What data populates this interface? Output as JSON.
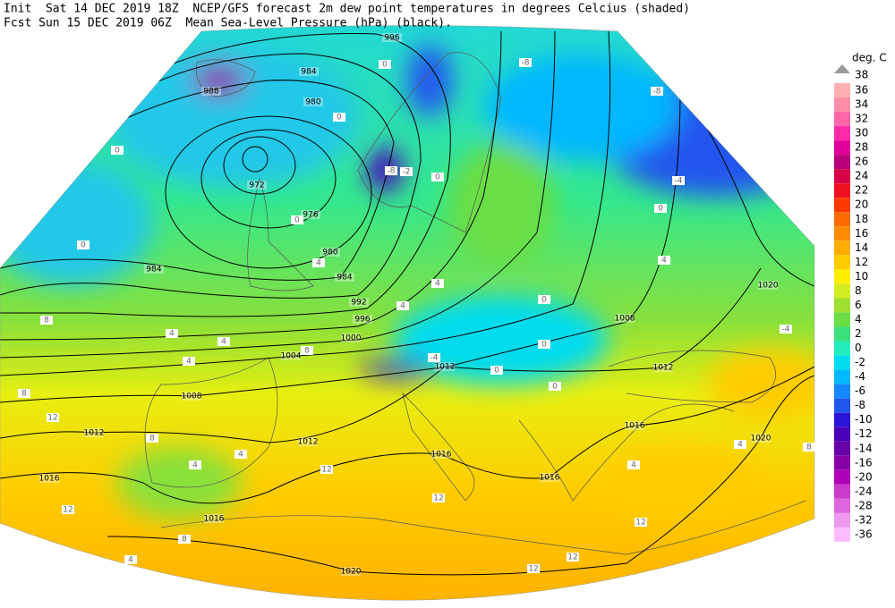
{
  "header": {
    "line1": "Init  Sat 14 DEC 2019 18Z  NCEP/GFS forecast 2m dew point temperatures in degrees Celcius (shaded)",
    "line2": "Fcst Sun 15 DEC 2019 06Z  Mean Sea-Level Pressure (hPa) (black)."
  },
  "legend": {
    "title": "deg. C",
    "top": 38,
    "levels": [
      36,
      34,
      32,
      30,
      28,
      26,
      24,
      22,
      20,
      18,
      16,
      14,
      12,
      10,
      8,
      6,
      4,
      2,
      0,
      -2,
      -4,
      -6,
      -8,
      -10,
      -12,
      -14,
      -16,
      -20,
      -24,
      -28,
      -32,
      -36
    ],
    "colors": [
      "#ffb0b0",
      "#ff8ca8",
      "#ff66aa",
      "#ff2aa8",
      "#e0009a",
      "#b80078",
      "#d80046",
      "#ee1020",
      "#ff3a00",
      "#ff6a00",
      "#ff8c00",
      "#ffac00",
      "#ffcc00",
      "#ffee00",
      "#d0ee20",
      "#a0e030",
      "#6ade44",
      "#3ae07a",
      "#22eebb",
      "#00dcee",
      "#00b8ff",
      "#1488ff",
      "#2055ee",
      "#2a14d8",
      "#4a00bb",
      "#6a00aa",
      "#8a00a8",
      "#b000b8",
      "#cc3acc",
      "#dd66dd",
      "#ee99ee",
      "#ffbbff"
    ]
  },
  "isobar_labels": [
    "996",
    "984",
    "980",
    "988",
    "972",
    "976",
    "980",
    "984",
    "984",
    "992",
    "996",
    "1000",
    "1004",
    "1008",
    "1012",
    "1012",
    "1016",
    "1016",
    "1020",
    "1016",
    "1016",
    "1016",
    "1012",
    "1012",
    "1008",
    "1020",
    "1020"
  ],
  "dewpoint_labels": [
    "0",
    "0",
    "0",
    "0",
    "-8",
    "-8",
    "-4",
    "0",
    "4",
    "-8",
    "-2",
    "0",
    "0",
    "4",
    "4",
    "4",
    "4",
    "4",
    "8",
    "4",
    "0",
    "0",
    "0",
    "0",
    "-4",
    "8",
    "12",
    "8",
    "4",
    "4",
    "12",
    "12",
    "12",
    "8",
    "4",
    "12",
    "12",
    "12",
    "4",
    "8",
    "-4",
    "4",
    "8"
  ]
}
